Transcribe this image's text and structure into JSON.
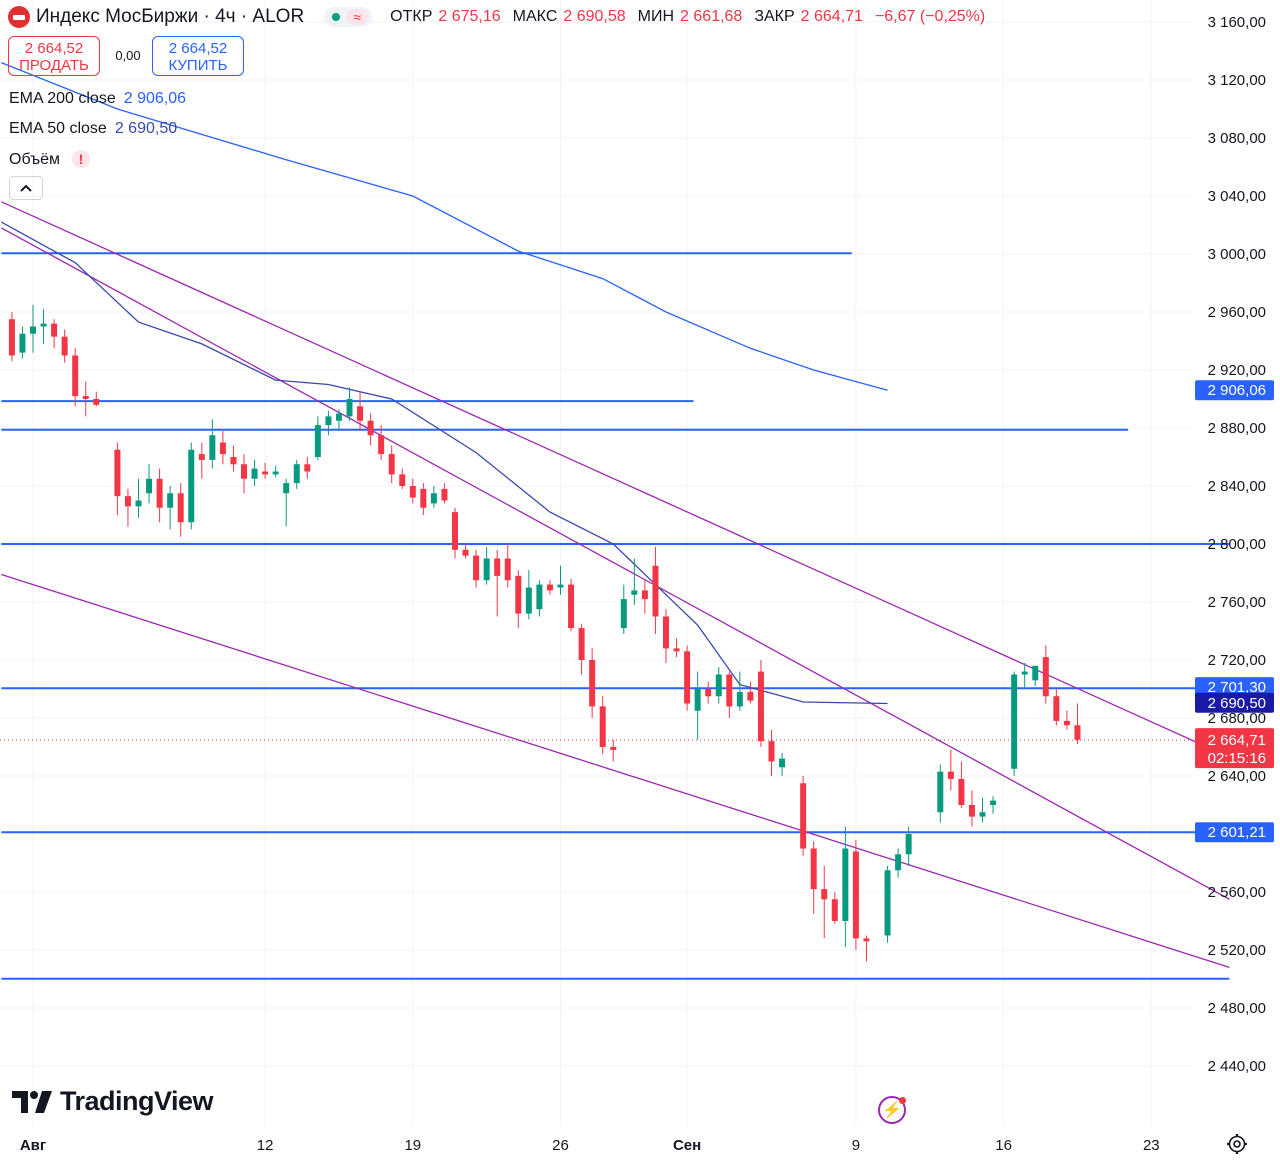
{
  "header": {
    "title": "Индекс МосБиржи · 4ч · ALOR",
    "open_label": "ОТКР",
    "open_value": "2 675,16",
    "high_label": "МАКС",
    "high_value": "2 690,58",
    "low_label": "МИН",
    "low_value": "2 661,68",
    "close_label": "ЗАКР",
    "close_value": "2 664,71",
    "change": "−6,67 (−0,25%)"
  },
  "trade": {
    "sell_price": "2 664,52",
    "sell_label": "ПРОДАТЬ",
    "spread": "0,00",
    "buy_price": "2 664,52",
    "buy_label": "КУПИТЬ"
  },
  "indicators": {
    "ema200_label": "EMA 200 close",
    "ema200_value": "2 906,06",
    "ema50_label": "EMA 50 close",
    "ema50_value": "2 690,50",
    "volume_label": "Объём",
    "volume_warning": "!"
  },
  "branding": {
    "logo_text": "TradingView"
  },
  "colors": {
    "up": "#089981",
    "down": "#f23645",
    "level": "#2962ff",
    "trend": "#9c27b0",
    "ema200": "#2962ff",
    "ema50": "#3949ab",
    "grid": "#f0f3fa"
  },
  "icons": [
    "chevron-up-icon",
    "lightning-icon",
    "gear-icon",
    "tradingview-logo-icon"
  ],
  "chart_data": {
    "type": "candlestick",
    "ylim": [
      2420,
      3175
    ],
    "x_ticks": [
      {
        "label": "Авг",
        "day": 0,
        "bold": true
      },
      {
        "label": "12",
        "day": 11
      },
      {
        "label": "19",
        "day": 18
      },
      {
        "label": "26",
        "day": 25
      },
      {
        "label": "Сен",
        "day": 31,
        "bold": true
      },
      {
        "label": "9",
        "day": 39
      },
      {
        "label": "16",
        "day": 46
      },
      {
        "label": "23",
        "day": 53
      }
    ],
    "y_ticks": [
      {
        "value": 3160,
        "label": "3 160,00"
      },
      {
        "value": 3120,
        "label": "3 120,00"
      },
      {
        "value": 3080,
        "label": "3 080,00"
      },
      {
        "value": 3040,
        "label": "3 040,00"
      },
      {
        "value": 3000,
        "label": "3 000,00"
      },
      {
        "value": 2960,
        "label": "2 960,00"
      },
      {
        "value": 2920,
        "label": "2 920,00"
      },
      {
        "value": 2880,
        "label": "2 880,00"
      },
      {
        "value": 2840,
        "label": "2 840,00"
      },
      {
        "value": 2800,
        "label": "2 800,00"
      },
      {
        "value": 2760,
        "label": "2 760,00"
      },
      {
        "value": 2720,
        "label": "2 720,00"
      },
      {
        "value": 2680,
        "label": "2 680,00"
      },
      {
        "value": 2640,
        "label": "2 640,00"
      },
      {
        "value": 2560,
        "label": "2 560,00"
      },
      {
        "value": 2520,
        "label": "2 520,00"
      },
      {
        "value": 2480,
        "label": "2 480,00"
      },
      {
        "value": 2440,
        "label": "2 440,00"
      }
    ],
    "price_labels": [
      {
        "value": 2906.06,
        "label": "2 906,06",
        "color": "#2962ff"
      },
      {
        "value": 2701.3,
        "label": "2 701,30",
        "color": "#2962ff"
      },
      {
        "value": 2690.5,
        "label": "2 690,50",
        "color": "#1a1aa6"
      },
      {
        "value": 2601.21,
        "label": "2 601,21",
        "color": "#2962ff"
      }
    ],
    "current_price": {
      "value": 2664.71,
      "label": "2 664,71",
      "countdown": "02:15:16",
      "color": "#f23645"
    },
    "horizontal_levels": [
      {
        "value": 3000.5,
        "from_day": -1.5,
        "to_day": 38.8
      },
      {
        "value": 2898.5,
        "from_day": -1.5,
        "to_day": 31.3
      },
      {
        "value": 2878.8,
        "from_day": -1.5,
        "to_day": 51.9
      },
      {
        "value": 2800,
        "from_day": -1.5,
        "to_day": 56.7
      },
      {
        "value": 2700.5,
        "from_day": -1.5,
        "to_day": 56.7
      },
      {
        "value": 2601.2,
        "from_day": -1.5,
        "to_day": 56.7
      },
      {
        "value": 2500.2,
        "from_day": -1.5,
        "to_day": 56.7
      }
    ],
    "trend_lines": [
      {
        "x1": -1.5,
        "y1": 3036,
        "x2": 56.7,
        "y2": 2653
      },
      {
        "x1": -1.5,
        "y1": 3018,
        "x2": 56.7,
        "y2": 2555
      },
      {
        "x1": -1.5,
        "y1": 2779,
        "x2": 56.7,
        "y2": 2508
      }
    ],
    "ema200": [
      [
        -1.5,
        3132
      ],
      [
        4,
        3100
      ],
      [
        12,
        3065
      ],
      [
        18,
        3040
      ],
      [
        23,
        3002
      ],
      [
        27,
        2983
      ],
      [
        30,
        2960
      ],
      [
        34,
        2935
      ],
      [
        37,
        2920
      ],
      [
        40.5,
        2906
      ]
    ],
    "ema50": [
      [
        -1.5,
        3022
      ],
      [
        2,
        2994
      ],
      [
        5,
        2953
      ],
      [
        8,
        2938
      ],
      [
        11.5,
        2913
      ],
      [
        14,
        2910
      ],
      [
        17,
        2900
      ],
      [
        21,
        2863
      ],
      [
        24.5,
        2822
      ],
      [
        27.5,
        2800
      ],
      [
        31.5,
        2744
      ],
      [
        33.5,
        2703
      ],
      [
        36.5,
        2691
      ],
      [
        40.5,
        2690
      ]
    ],
    "candles": [
      {
        "day": -1.0,
        "o": 2955,
        "h": 2960,
        "l": 2926,
        "c": 2930
      },
      {
        "day": -0.5,
        "o": 2932,
        "h": 2950,
        "l": 2928,
        "c": 2945
      },
      {
        "day": 0.0,
        "o": 2945,
        "h": 2965,
        "l": 2932,
        "c": 2950
      },
      {
        "day": 0.5,
        "o": 2950,
        "h": 2962,
        "l": 2938,
        "c": 2952
      },
      {
        "day": 1.0,
        "o": 2952,
        "h": 2955,
        "l": 2935,
        "c": 2943
      },
      {
        "day": 1.5,
        "o": 2943,
        "h": 2948,
        "l": 2925,
        "c": 2930
      },
      {
        "day": 2.0,
        "o": 2930,
        "h": 2935,
        "l": 2895,
        "c": 2902
      },
      {
        "day": 2.5,
        "o": 2902,
        "h": 2912,
        "l": 2888,
        "c": 2900
      },
      {
        "day": 3.0,
        "o": 2900,
        "h": 2905,
        "l": 2895,
        "c": 2896
      },
      {
        "day": 4.0,
        "o": 2865,
        "h": 2870,
        "l": 2820,
        "c": 2833
      },
      {
        "day": 4.5,
        "o": 2833,
        "h": 2838,
        "l": 2812,
        "c": 2826
      },
      {
        "day": 5.0,
        "o": 2826,
        "h": 2845,
        "l": 2818,
        "c": 2830
      },
      {
        "day": 5.5,
        "o": 2835,
        "h": 2855,
        "l": 2828,
        "c": 2845
      },
      {
        "day": 6.0,
        "o": 2845,
        "h": 2852,
        "l": 2815,
        "c": 2825
      },
      {
        "day": 6.5,
        "o": 2825,
        "h": 2840,
        "l": 2810,
        "c": 2835
      },
      {
        "day": 7.0,
        "o": 2835,
        "h": 2842,
        "l": 2805,
        "c": 2815
      },
      {
        "day": 7.5,
        "o": 2815,
        "h": 2870,
        "l": 2810,
        "c": 2865
      },
      {
        "day": 8.0,
        "o": 2862,
        "h": 2870,
        "l": 2845,
        "c": 2858
      },
      {
        "day": 8.5,
        "o": 2858,
        "h": 2886,
        "l": 2852,
        "c": 2875
      },
      {
        "day": 9.0,
        "o": 2870,
        "h": 2878,
        "l": 2855,
        "c": 2862
      },
      {
        "day": 9.5,
        "o": 2860,
        "h": 2868,
        "l": 2850,
        "c": 2855
      },
      {
        "day": 10.0,
        "o": 2855,
        "h": 2862,
        "l": 2835,
        "c": 2845
      },
      {
        "day": 10.5,
        "o": 2845,
        "h": 2858,
        "l": 2840,
        "c": 2852
      },
      {
        "day": 11.0,
        "o": 2850,
        "h": 2856,
        "l": 2845,
        "c": 2848
      },
      {
        "day": 11.5,
        "o": 2848,
        "h": 2854,
        "l": 2846,
        "c": 2850
      },
      {
        "day": 12.0,
        "o": 2835,
        "h": 2845,
        "l": 2812,
        "c": 2842
      },
      {
        "day": 12.5,
        "o": 2842,
        "h": 2858,
        "l": 2838,
        "c": 2855
      },
      {
        "day": 13.0,
        "o": 2855,
        "h": 2860,
        "l": 2845,
        "c": 2850
      },
      {
        "day": 13.5,
        "o": 2860,
        "h": 2888,
        "l": 2858,
        "c": 2882
      },
      {
        "day": 14.0,
        "o": 2882,
        "h": 2892,
        "l": 2875,
        "c": 2888
      },
      {
        "day": 14.5,
        "o": 2885,
        "h": 2893,
        "l": 2878,
        "c": 2890
      },
      {
        "day": 15.0,
        "o": 2888,
        "h": 2908,
        "l": 2885,
        "c": 2900
      },
      {
        "day": 15.5,
        "o": 2895,
        "h": 2905,
        "l": 2878,
        "c": 2885
      },
      {
        "day": 16.0,
        "o": 2885,
        "h": 2890,
        "l": 2868,
        "c": 2875
      },
      {
        "day": 16.5,
        "o": 2875,
        "h": 2882,
        "l": 2858,
        "c": 2862
      },
      {
        "day": 17.0,
        "o": 2862,
        "h": 2868,
        "l": 2842,
        "c": 2848
      },
      {
        "day": 17.5,
        "o": 2848,
        "h": 2852,
        "l": 2838,
        "c": 2840
      },
      {
        "day": 18.0,
        "o": 2840,
        "h": 2845,
        "l": 2828,
        "c": 2832
      },
      {
        "day": 18.5,
        "o": 2838,
        "h": 2842,
        "l": 2820,
        "c": 2825
      },
      {
        "day": 19.0,
        "o": 2828,
        "h": 2840,
        "l": 2825,
        "c": 2835
      },
      {
        "day": 19.5,
        "o": 2838,
        "h": 2842,
        "l": 2828,
        "c": 2830
      },
      {
        "day": 20.0,
        "o": 2822,
        "h": 2825,
        "l": 2790,
        "c": 2796
      },
      {
        "day": 20.5,
        "o": 2796,
        "h": 2800,
        "l": 2790,
        "c": 2792
      },
      {
        "day": 21.0,
        "o": 2792,
        "h": 2796,
        "l": 2770,
        "c": 2775
      },
      {
        "day": 21.5,
        "o": 2775,
        "h": 2798,
        "l": 2772,
        "c": 2790
      },
      {
        "day": 22.0,
        "o": 2790,
        "h": 2796,
        "l": 2750,
        "c": 2778
      },
      {
        "day": 22.5,
        "o": 2790,
        "h": 2800,
        "l": 2770,
        "c": 2775
      },
      {
        "day": 23.0,
        "o": 2778,
        "h": 2782,
        "l": 2742,
        "c": 2752
      },
      {
        "day": 23.5,
        "o": 2752,
        "h": 2782,
        "l": 2748,
        "c": 2770
      },
      {
        "day": 24.0,
        "o": 2755,
        "h": 2775,
        "l": 2750,
        "c": 2772
      },
      {
        "day": 24.5,
        "o": 2772,
        "h": 2775,
        "l": 2765,
        "c": 2768
      },
      {
        "day": 25.0,
        "o": 2770,
        "h": 2785,
        "l": 2765,
        "c": 2772
      },
      {
        "day": 25.5,
        "o": 2772,
        "h": 2776,
        "l": 2740,
        "c": 2742
      },
      {
        "day": 26.0,
        "o": 2742,
        "h": 2745,
        "l": 2710,
        "c": 2720
      },
      {
        "day": 26.5,
        "o": 2720,
        "h": 2728,
        "l": 2680,
        "c": 2688
      },
      {
        "day": 27.0,
        "o": 2688,
        "h": 2695,
        "l": 2655,
        "c": 2660
      },
      {
        "day": 27.5,
        "o": 2660,
        "h": 2665,
        "l": 2650,
        "c": 2658
      },
      {
        "day": 28.0,
        "o": 2742,
        "h": 2772,
        "l": 2738,
        "c": 2762
      },
      {
        "day": 28.5,
        "o": 2765,
        "h": 2790,
        "l": 2758,
        "c": 2768
      },
      {
        "day": 29.0,
        "o": 2768,
        "h": 2775,
        "l": 2752,
        "c": 2762
      },
      {
        "day": 29.5,
        "o": 2785,
        "h": 2798,
        "l": 2738,
        "c": 2750
      },
      {
        "day": 30.0,
        "o": 2750,
        "h": 2755,
        "l": 2718,
        "c": 2728
      },
      {
        "day": 30.5,
        "o": 2728,
        "h": 2735,
        "l": 2722,
        "c": 2726
      },
      {
        "day": 31.0,
        "o": 2726,
        "h": 2730,
        "l": 2685,
        "c": 2690
      },
      {
        "day": 31.5,
        "o": 2685,
        "h": 2712,
        "l": 2665,
        "c": 2700
      },
      {
        "day": 32.0,
        "o": 2700,
        "h": 2705,
        "l": 2690,
        "c": 2695
      },
      {
        "day": 32.5,
        "o": 2695,
        "h": 2715,
        "l": 2690,
        "c": 2710
      },
      {
        "day": 33.0,
        "o": 2710,
        "h": 2712,
        "l": 2680,
        "c": 2688
      },
      {
        "day": 33.5,
        "o": 2688,
        "h": 2712,
        "l": 2685,
        "c": 2698
      },
      {
        "day": 34.0,
        "o": 2698,
        "h": 2705,
        "l": 2690,
        "c": 2692
      },
      {
        "day": 34.5,
        "o": 2712,
        "h": 2720,
        "l": 2660,
        "c": 2664
      },
      {
        "day": 35.0,
        "o": 2664,
        "h": 2672,
        "l": 2640,
        "c": 2650
      },
      {
        "day": 35.5,
        "o": 2646,
        "h": 2656,
        "l": 2640,
        "c": 2652
      },
      {
        "day": 36.5,
        "o": 2635,
        "h": 2640,
        "l": 2585,
        "c": 2590
      },
      {
        "day": 37.0,
        "o": 2590,
        "h": 2595,
        "l": 2545,
        "c": 2562
      },
      {
        "day": 37.5,
        "o": 2562,
        "h": 2578,
        "l": 2528,
        "c": 2555
      },
      {
        "day": 38.0,
        "o": 2555,
        "h": 2560,
        "l": 2538,
        "c": 2540
      },
      {
        "day": 38.5,
        "o": 2540,
        "h": 2605,
        "l": 2522,
        "c": 2590
      },
      {
        "day": 39.0,
        "o": 2588,
        "h": 2596,
        "l": 2520,
        "c": 2528
      },
      {
        "day": 39.5,
        "o": 2528,
        "h": 2530,
        "l": 2512,
        "c": 2526
      },
      {
        "day": 40.5,
        "o": 2530,
        "h": 2578,
        "l": 2525,
        "c": 2575
      },
      {
        "day": 41.0,
        "o": 2575,
        "h": 2590,
        "l": 2570,
        "c": 2586
      },
      {
        "day": 41.5,
        "o": 2586,
        "h": 2605,
        "l": 2578,
        "c": 2600
      },
      {
        "day": 43.0,
        "o": 2615,
        "h": 2648,
        "l": 2608,
        "c": 2643
      },
      {
        "day": 43.5,
        "o": 2643,
        "h": 2658,
        "l": 2630,
        "c": 2638
      },
      {
        "day": 44.0,
        "o": 2638,
        "h": 2650,
        "l": 2618,
        "c": 2620
      },
      {
        "day": 44.5,
        "o": 2620,
        "h": 2630,
        "l": 2605,
        "c": 2612
      },
      {
        "day": 45.0,
        "o": 2612,
        "h": 2625,
        "l": 2608,
        "c": 2615
      },
      {
        "day": 45.5,
        "o": 2620,
        "h": 2626,
        "l": 2614,
        "c": 2623
      },
      {
        "day": 46.5,
        "o": 2645,
        "h": 2712,
        "l": 2640,
        "c": 2710
      },
      {
        "day": 47.0,
        "o": 2710,
        "h": 2718,
        "l": 2700,
        "c": 2712
      },
      {
        "day": 47.5,
        "o": 2706,
        "h": 2715,
        "l": 2702,
        "c": 2716
      },
      {
        "day": 48.0,
        "o": 2722,
        "h": 2730,
        "l": 2690,
        "c": 2695
      },
      {
        "day": 48.5,
        "o": 2695,
        "h": 2700,
        "l": 2675,
        "c": 2678
      },
      {
        "day": 49.0,
        "o": 2678,
        "h": 2685,
        "l": 2672,
        "c": 2675
      },
      {
        "day": 49.5,
        "o": 2675,
        "h": 2690,
        "l": 2662,
        "c": 2665
      }
    ]
  }
}
